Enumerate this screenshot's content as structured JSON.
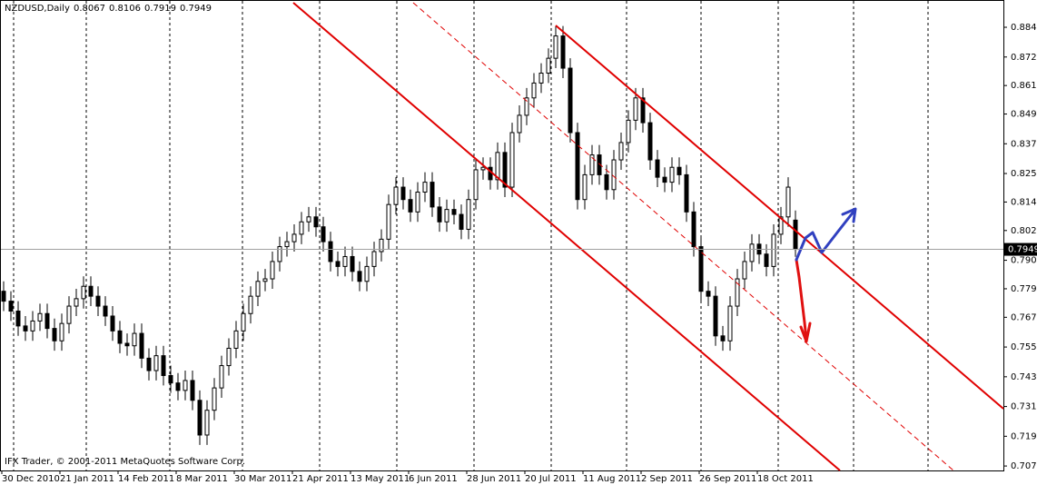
{
  "chart_data": {
    "type": "candlestick",
    "title": "NZDUSD,Daily",
    "footer": "IFX Trader, © 2001-2011 MetaQuotes Software Corp.",
    "categories": [
      "30 Dec 2010",
      null,
      null,
      null,
      null,
      null,
      null,
      null,
      "21 Jan 2011",
      null,
      null,
      null,
      null,
      null,
      null,
      null,
      "14 Feb 2011",
      null,
      null,
      null,
      null,
      null,
      null,
      null,
      "8 Mar 2011",
      null,
      null,
      null,
      null,
      null,
      null,
      null,
      "30 Mar 2011",
      null,
      null,
      null,
      null,
      null,
      null,
      null,
      "21 Apr 2011",
      null,
      null,
      null,
      null,
      null,
      null,
      null,
      "13 May 2011",
      null,
      null,
      null,
      null,
      null,
      null,
      null,
      "6 Jun 2011",
      null,
      null,
      null,
      null,
      null,
      null,
      null,
      "28 Jun 2011",
      null,
      null,
      null,
      null,
      null,
      null,
      null,
      "20 Jul 2011",
      null,
      null,
      null,
      null,
      null,
      null,
      null,
      "11 Aug 2011",
      null,
      null,
      null,
      null,
      null,
      null,
      null,
      "2 Sep 2011",
      null,
      null,
      null,
      null,
      null,
      null,
      null,
      "26 Sep 2011",
      null,
      null,
      null,
      null,
      null,
      null,
      null,
      "18 Oct 2011",
      null,
      null,
      null,
      null,
      null
    ],
    "open": [
      0.778,
      0.774,
      0.77,
      0.764,
      0.762,
      0.766,
      0.769,
      0.763,
      0.758,
      0.765,
      0.772,
      0.775,
      0.78,
      0.776,
      0.772,
      0.768,
      0.762,
      0.757,
      0.756,
      0.761,
      0.751,
      0.746,
      0.752,
      0.744,
      0.741,
      0.738,
      0.742,
      0.734,
      0.72,
      0.73,
      0.739,
      0.748,
      0.755,
      0.762,
      0.769,
      0.776,
      0.782,
      0.783,
      0.79,
      0.796,
      0.798,
      0.801,
      0.806,
      0.808,
      0.804,
      0.798,
      0.79,
      0.788,
      0.792,
      0.786,
      0.782,
      0.788,
      0.794,
      0.799,
      0.813,
      0.82,
      0.815,
      0.81,
      0.818,
      0.822,
      0.812,
      0.806,
      0.811,
      0.809,
      0.803,
      0.815,
      0.827,
      0.828,
      0.823,
      0.834,
      0.82,
      0.842,
      0.849,
      0.856,
      0.862,
      0.866,
      0.872,
      0.881,
      0.868,
      0.842,
      0.815,
      0.825,
      0.833,
      0.825,
      0.819,
      0.831,
      0.838,
      0.847,
      0.856,
      0.846,
      0.831,
      0.824,
      0.822,
      0.828,
      0.825,
      0.81,
      0.796,
      0.778,
      0.776,
      0.76,
      0.758,
      0.772,
      0.783,
      0.79,
      0.797,
      0.793,
      0.788,
      0.801,
      0.808,
      0.8067
    ],
    "high": [
      0.782,
      0.778,
      0.774,
      0.768,
      0.77,
      0.773,
      0.773,
      0.767,
      0.769,
      0.776,
      0.779,
      0.784,
      0.784,
      0.78,
      0.776,
      0.772,
      0.766,
      0.761,
      0.765,
      0.765,
      0.755,
      0.756,
      0.756,
      0.748,
      0.745,
      0.746,
      0.746,
      0.738,
      0.734,
      0.743,
      0.752,
      0.759,
      0.766,
      0.773,
      0.78,
      0.786,
      0.787,
      0.794,
      0.8,
      0.802,
      0.805,
      0.81,
      0.812,
      0.812,
      0.808,
      0.802,
      0.794,
      0.796,
      0.796,
      0.79,
      0.792,
      0.798,
      0.803,
      0.817,
      0.824,
      0.824,
      0.819,
      0.822,
      0.826,
      0.826,
      0.816,
      0.815,
      0.815,
      0.813,
      0.819,
      0.831,
      0.832,
      0.832,
      0.838,
      0.838,
      0.846,
      0.853,
      0.86,
      0.866,
      0.87,
      0.876,
      0.885,
      0.885,
      0.872,
      0.846,
      0.829,
      0.837,
      0.837,
      0.829,
      0.835,
      0.842,
      0.851,
      0.86,
      0.86,
      0.85,
      0.835,
      0.828,
      0.832,
      0.832,
      0.829,
      0.814,
      0.8,
      0.782,
      0.78,
      0.764,
      0.776,
      0.787,
      0.794,
      0.801,
      0.801,
      0.797,
      0.805,
      0.812,
      0.824,
      0.8106
    ],
    "low": [
      0.77,
      0.766,
      0.76,
      0.758,
      0.758,
      0.762,
      0.759,
      0.754,
      0.754,
      0.761,
      0.768,
      0.771,
      0.772,
      0.768,
      0.764,
      0.758,
      0.753,
      0.752,
      0.752,
      0.747,
      0.742,
      0.742,
      0.74,
      0.737,
      0.734,
      0.734,
      0.73,
      0.716,
      0.716,
      0.726,
      0.735,
      0.744,
      0.751,
      0.758,
      0.765,
      0.772,
      0.778,
      0.779,
      0.786,
      0.792,
      0.794,
      0.797,
      0.802,
      0.8,
      0.794,
      0.786,
      0.784,
      0.784,
      0.782,
      0.778,
      0.778,
      0.784,
      0.79,
      0.795,
      0.809,
      0.811,
      0.806,
      0.806,
      0.814,
      0.808,
      0.802,
      0.802,
      0.805,
      0.799,
      0.799,
      0.811,
      0.823,
      0.819,
      0.819,
      0.816,
      0.816,
      0.838,
      0.845,
      0.852,
      0.858,
      0.862,
      0.868,
      0.864,
      0.838,
      0.811,
      0.811,
      0.821,
      0.821,
      0.815,
      0.815,
      0.827,
      0.834,
      0.843,
      0.842,
      0.827,
      0.82,
      0.818,
      0.818,
      0.821,
      0.806,
      0.792,
      0.774,
      0.772,
      0.756,
      0.754,
      0.754,
      0.768,
      0.779,
      0.786,
      0.789,
      0.784,
      0.784,
      0.797,
      0.804,
      0.7919
    ],
    "close": [
      0.774,
      0.77,
      0.764,
      0.762,
      0.766,
      0.769,
      0.763,
      0.758,
      0.765,
      0.772,
      0.775,
      0.78,
      0.776,
      0.772,
      0.768,
      0.762,
      0.757,
      0.756,
      0.761,
      0.751,
      0.746,
      0.752,
      0.744,
      0.741,
      0.738,
      0.742,
      0.734,
      0.72,
      0.73,
      0.739,
      0.748,
      0.755,
      0.762,
      0.769,
      0.776,
      0.782,
      0.783,
      0.79,
      0.796,
      0.798,
      0.801,
      0.806,
      0.808,
      0.804,
      0.798,
      0.79,
      0.788,
      0.792,
      0.786,
      0.782,
      0.788,
      0.794,
      0.799,
      0.813,
      0.82,
      0.815,
      0.81,
      0.818,
      0.822,
      0.812,
      0.806,
      0.811,
      0.809,
      0.803,
      0.815,
      0.827,
      0.828,
      0.823,
      0.834,
      0.82,
      0.842,
      0.849,
      0.856,
      0.862,
      0.866,
      0.872,
      0.881,
      0.868,
      0.842,
      0.815,
      0.825,
      0.833,
      0.825,
      0.819,
      0.831,
      0.838,
      0.847,
      0.856,
      0.846,
      0.831,
      0.824,
      0.822,
      0.828,
      0.825,
      0.81,
      0.796,
      0.778,
      0.776,
      0.76,
      0.758,
      0.772,
      0.783,
      0.79,
      0.797,
      0.793,
      0.788,
      0.801,
      0.808,
      0.82,
      0.7949
    ],
    "up_color": "#ffffff",
    "down_color": "#000000",
    "ylim": [
      0.7057,
      0.8955
    ],
    "yticks": [
      0.7075,
      0.7195,
      0.7315,
      0.7435,
      0.7555,
      0.7675,
      {
        "value": 0.779,
        "label": "0.7790"
      },
      0.7905,
      0.8025,
      {
        "value": 0.814,
        "label": "0.8140"
      },
      0.8255,
      0.8375,
      0.8495,
      {
        "value": 0.861,
        "label": "0.8610"
      },
      0.8725,
      0.8845
    ]
  }
}
